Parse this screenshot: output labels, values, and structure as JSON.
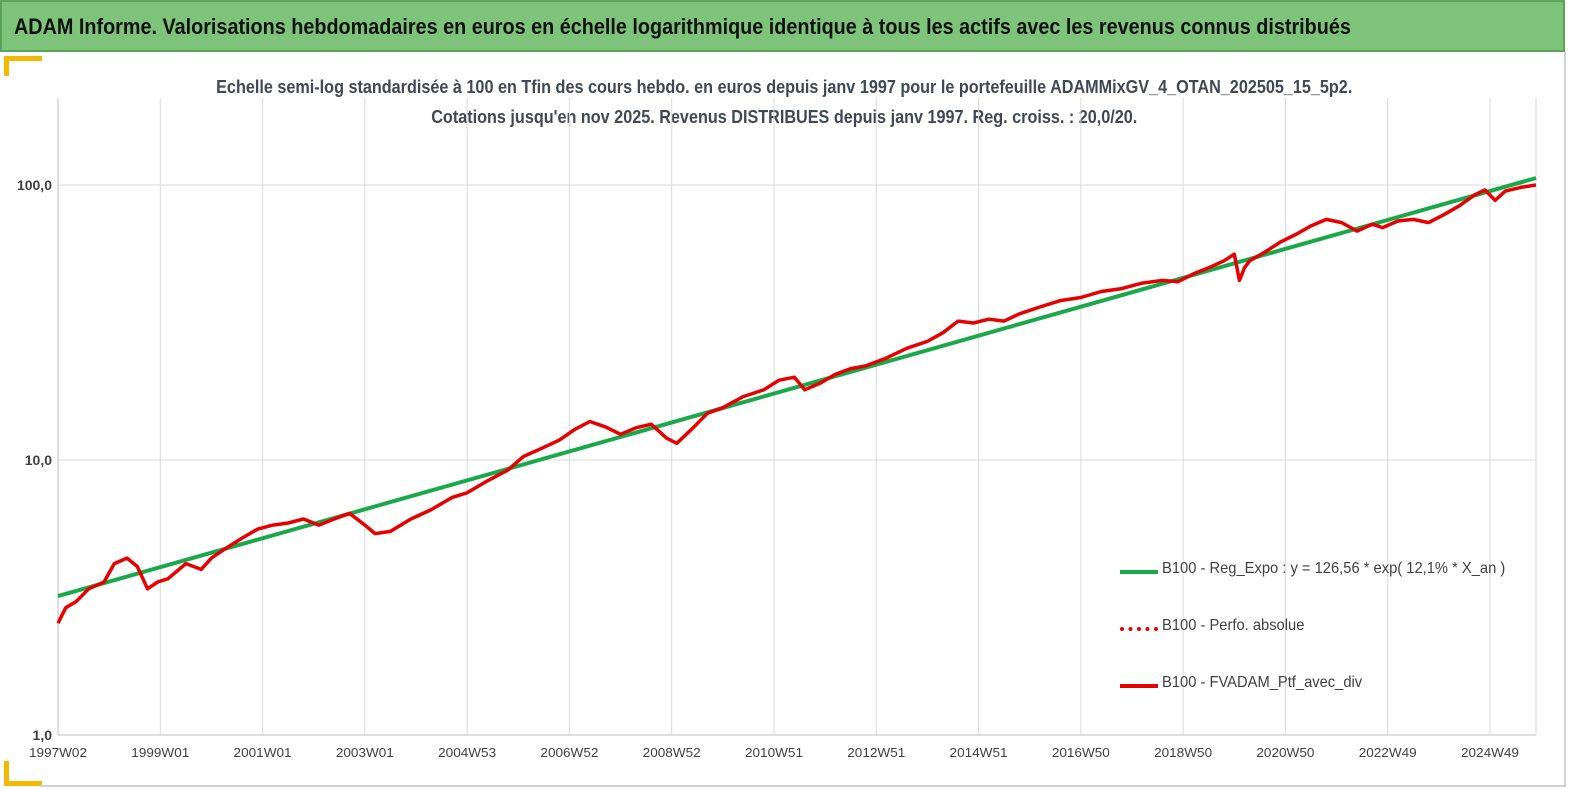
{
  "header": {
    "title": "ADAM Informe. Valorisations hebdomadaires en euros en échelle logarithmique identique à tous les actifs avec les revenus connus distribués"
  },
  "colors": {
    "header_bg": "#7dc37a",
    "accent": "#f5b800",
    "regression_line": "#1aa84a",
    "portfolio_line": "#e60000",
    "perfo_line": "#e60000",
    "gridline": "#d9d9d9",
    "title_text": "#404856"
  },
  "chart_data": {
    "type": "line",
    "title_line1": "Echelle semi-log standardisée  à 100 en Tfin des cours hebdo.  en euros depuis janv 1997 pour le portefeuille ADAMMixGV_4_OTAN_202505_15_5p2.",
    "title_line2": "Cotations jusqu'en nov 2025. Revenus DISTRIBUES depuis janv 1997. Reg. croiss. : 20,0/20.",
    "yscale": "log",
    "ylim": [
      1,
      150
    ],
    "xlim": [
      1997.0,
      2025.9
    ],
    "grid": true,
    "y_ticks": [
      {
        "value": 1,
        "label": "1,0"
      },
      {
        "value": 10,
        "label": "10,0"
      },
      {
        "value": 100,
        "label": "100,0"
      }
    ],
    "x_ticks": [
      {
        "value": 1997.0,
        "label": "1997W02"
      },
      {
        "value": 1999.0,
        "label": "1999W01"
      },
      {
        "value": 2001.0,
        "label": "2001W01"
      },
      {
        "value": 2003.0,
        "label": "2003W01"
      },
      {
        "value": 2005.0,
        "label": "2004W53"
      },
      {
        "value": 2007.0,
        "label": "2006W52"
      },
      {
        "value": 2009.0,
        "label": "2008W52"
      },
      {
        "value": 2011.0,
        "label": "2010W51"
      },
      {
        "value": 2013.0,
        "label": "2012W51"
      },
      {
        "value": 2015.0,
        "label": "2014W51"
      },
      {
        "value": 2017.0,
        "label": "2016W50"
      },
      {
        "value": 2019.0,
        "label": "2018W50"
      },
      {
        "value": 2021.0,
        "label": "2020W50"
      },
      {
        "value": 2023.0,
        "label": "2022W49"
      },
      {
        "value": 2025.0,
        "label": "2024W49"
      }
    ],
    "legend_position": "right",
    "series": [
      {
        "name": "B100 - Reg_Expo : y = 126,56 * exp( 12,1% *  X_an )",
        "style": "solid-green",
        "x": [
          1997.0,
          2025.9
        ],
        "values": [
          3.2,
          106
        ]
      },
      {
        "name": "B100 - Perfo. absolue",
        "style": "dotted-red",
        "x": [],
        "values": []
      },
      {
        "name": "B100 - FVADAM_Ptf_avec_div",
        "style": "solid-red",
        "x": [
          1997.0,
          1997.15,
          1997.35,
          1997.6,
          1997.9,
          1998.1,
          1998.35,
          1998.55,
          1998.75,
          1998.95,
          1999.15,
          1999.5,
          1999.8,
          2000.0,
          2000.3,
          2000.6,
          2000.9,
          2001.2,
          2001.5,
          2001.8,
          2002.1,
          2002.4,
          2002.7,
          2003.0,
          2003.2,
          2003.5,
          2003.9,
          2004.3,
          2004.7,
          2005.0,
          2005.4,
          2005.8,
          2006.1,
          2006.4,
          2006.8,
          2007.1,
          2007.4,
          2007.7,
          2008.0,
          2008.3,
          2008.6,
          2008.9,
          2009.1,
          2009.4,
          2009.7,
          2010.0,
          2010.4,
          2010.8,
          2011.1,
          2011.4,
          2011.6,
          2011.9,
          2012.2,
          2012.5,
          2012.8,
          2013.2,
          2013.6,
          2014.0,
          2014.3,
          2014.6,
          2014.9,
          2015.2,
          2015.5,
          2015.8,
          2016.2,
          2016.6,
          2017.0,
          2017.4,
          2017.8,
          2018.2,
          2018.6,
          2018.9,
          2019.2,
          2019.5,
          2019.8,
          2020.0,
          2020.1,
          2020.2,
          2020.3,
          2020.6,
          2020.9,
          2021.2,
          2021.5,
          2021.8,
          2022.1,
          2022.4,
          2022.7,
          2022.9,
          2023.2,
          2023.5,
          2023.8,
          2024.1,
          2024.4,
          2024.7,
          2024.9,
          2025.1,
          2025.3,
          2025.6,
          2025.9
        ],
        "values": [
          2.55,
          2.9,
          3.05,
          3.4,
          3.6,
          4.2,
          4.4,
          4.1,
          3.4,
          3.6,
          3.7,
          4.2,
          4.0,
          4.4,
          4.8,
          5.2,
          5.6,
          5.8,
          5.9,
          6.1,
          5.8,
          6.1,
          6.4,
          5.8,
          5.4,
          5.5,
          6.1,
          6.6,
          7.3,
          7.6,
          8.4,
          9.2,
          10.3,
          10.9,
          11.8,
          12.9,
          13.8,
          13.2,
          12.4,
          13.1,
          13.5,
          12.0,
          11.5,
          13.0,
          14.8,
          15.5,
          17.0,
          18.0,
          19.5,
          20.0,
          18.0,
          19.0,
          20.5,
          21.5,
          22.0,
          23.5,
          25.5,
          27.0,
          29.0,
          32.0,
          31.5,
          32.5,
          32.0,
          34.0,
          36.0,
          38.0,
          39.0,
          41.0,
          42.0,
          44.0,
          45.0,
          44.5,
          47.5,
          50.0,
          53.0,
          56.0,
          45.0,
          50.0,
          53.0,
          57.0,
          62.0,
          66.0,
          71.0,
          75.0,
          73.0,
          68.0,
          72.0,
          70.0,
          74.0,
          75.0,
          73.0,
          78.0,
          84.0,
          92.0,
          96.0,
          88.0,
          95.0,
          98.0,
          100.0
        ]
      }
    ]
  }
}
